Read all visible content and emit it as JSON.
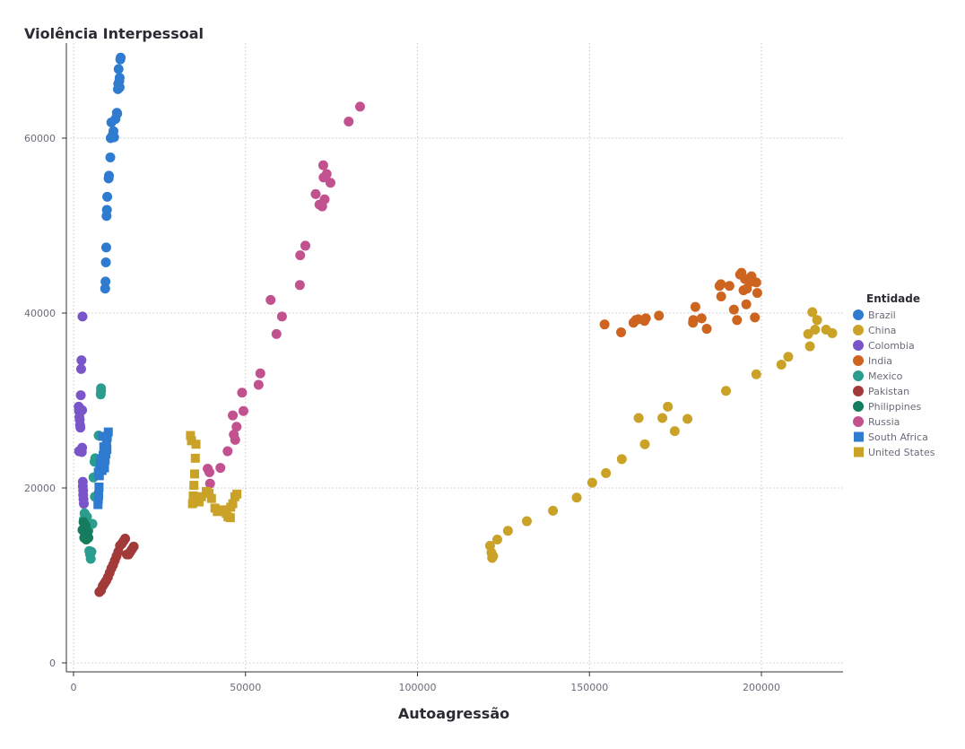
{
  "chart_data": {
    "type": "scatter",
    "title": "Violência Interpessoal",
    "xlabel": "Autoagressão",
    "ylabel": "",
    "xlim": [
      -2000,
      223000
    ],
    "ylim": [
      -1000,
      70000
    ],
    "xticks": [
      0,
      50000,
      100000,
      150000,
      200000
    ],
    "yticks": [
      0,
      20000,
      40000,
      60000
    ],
    "grid": true,
    "legend": {
      "title": "Entidade",
      "position": "right"
    },
    "series": [
      {
        "name": "Brazil",
        "color": "#2e7bcf",
        "marker": "circle",
        "points": [
          [
            9200,
            42800
          ],
          [
            9300,
            43600
          ],
          [
            9400,
            45800
          ],
          [
            9500,
            47500
          ],
          [
            9600,
            51100
          ],
          [
            9700,
            51800
          ],
          [
            9800,
            53300
          ],
          [
            10200,
            55400
          ],
          [
            10300,
            55700
          ],
          [
            10700,
            57800
          ],
          [
            10800,
            60000
          ],
          [
            11000,
            61800
          ],
          [
            11300,
            60300
          ],
          [
            11600,
            60800
          ],
          [
            11800,
            60100
          ],
          [
            12200,
            62200
          ],
          [
            12600,
            62900
          ],
          [
            12700,
            62800
          ],
          [
            12900,
            65600
          ],
          [
            13000,
            66200
          ],
          [
            13100,
            67900
          ],
          [
            13300,
            66500
          ],
          [
            13400,
            66900
          ],
          [
            13600,
            69000
          ],
          [
            13700,
            69200
          ],
          [
            13400,
            65800
          ]
        ]
      },
      {
        "name": "China",
        "color": "#c9a227",
        "marker": "circle",
        "points": [
          [
            121100,
            13400
          ],
          [
            121500,
            12600
          ],
          [
            121700,
            12000
          ],
          [
            122000,
            12200
          ],
          [
            123200,
            14100
          ],
          [
            126300,
            15100
          ],
          [
            131800,
            16200
          ],
          [
            139400,
            17400
          ],
          [
            146300,
            18900
          ],
          [
            150800,
            20600
          ],
          [
            154800,
            21700
          ],
          [
            159400,
            23300
          ],
          [
            164300,
            28000
          ],
          [
            166100,
            25000
          ],
          [
            171200,
            28000
          ],
          [
            172800,
            29300
          ],
          [
            174800,
            26500
          ],
          [
            178500,
            27900
          ],
          [
            189700,
            31100
          ],
          [
            198500,
            33000
          ],
          [
            205800,
            34100
          ],
          [
            207800,
            35000
          ],
          [
            213600,
            37600
          ],
          [
            214100,
            36200
          ],
          [
            214800,
            40100
          ],
          [
            215600,
            38100
          ],
          [
            216200,
            39200
          ],
          [
            218800,
            38100
          ],
          [
            220600,
            37700
          ]
        ]
      },
      {
        "name": "Colombia",
        "color": "#7a55c9",
        "marker": "circle",
        "points": [
          [
            1500,
            29300
          ],
          [
            1600,
            28800
          ],
          [
            1700,
            28100
          ],
          [
            1800,
            27800
          ],
          [
            1900,
            27200
          ],
          [
            2000,
            26900
          ],
          [
            2100,
            30600
          ],
          [
            2200,
            33600
          ],
          [
            2300,
            34600
          ],
          [
            2400,
            24100
          ],
          [
            2500,
            24600
          ],
          [
            2600,
            39600
          ],
          [
            2700,
            20700
          ],
          [
            2700,
            20200
          ],
          [
            2800,
            19700
          ],
          [
            2800,
            19200
          ],
          [
            2900,
            18700
          ],
          [
            3000,
            18200
          ],
          [
            2500,
            28900
          ],
          [
            1800,
            28900
          ],
          [
            1600,
            24200
          ]
        ]
      },
      {
        "name": "India",
        "color": "#cd6420",
        "marker": "circle",
        "points": [
          [
            154400,
            38700
          ],
          [
            159200,
            37800
          ],
          [
            162800,
            38900
          ],
          [
            163500,
            39200
          ],
          [
            164200,
            39300
          ],
          [
            166000,
            39100
          ],
          [
            166400,
            39400
          ],
          [
            170200,
            39700
          ],
          [
            180100,
            38900
          ],
          [
            180200,
            39200
          ],
          [
            180800,
            40700
          ],
          [
            182600,
            39400
          ],
          [
            184100,
            38200
          ],
          [
            187800,
            43100
          ],
          [
            188200,
            43300
          ],
          [
            188300,
            41900
          ],
          [
            190700,
            43100
          ],
          [
            192000,
            40400
          ],
          [
            192900,
            39200
          ],
          [
            193800,
            44400
          ],
          [
            194200,
            44600
          ],
          [
            194800,
            42600
          ],
          [
            195200,
            43900
          ],
          [
            195600,
            41000
          ],
          [
            195800,
            42800
          ],
          [
            196300,
            43800
          ],
          [
            197100,
            44200
          ],
          [
            197600,
            43600
          ],
          [
            198100,
            39500
          ],
          [
            198500,
            43500
          ],
          [
            198800,
            42300
          ]
        ]
      },
      {
        "name": "Mexico",
        "color": "#2a9d8f",
        "marker": "circle",
        "points": [
          [
            3000,
            16400
          ],
          [
            3200,
            17100
          ],
          [
            3600,
            15700
          ],
          [
            3900,
            16700
          ],
          [
            4300,
            15100
          ],
          [
            4600,
            12800
          ],
          [
            4800,
            12400
          ],
          [
            5000,
            11900
          ],
          [
            5200,
            12700
          ],
          [
            5500,
            15900
          ],
          [
            5800,
            21200
          ],
          [
            6200,
            19000
          ],
          [
            6300,
            23400
          ],
          [
            7300,
            26000
          ],
          [
            8000,
            31100
          ],
          [
            8000,
            31400
          ],
          [
            7900,
            30700
          ],
          [
            6100,
            23000
          ]
        ]
      },
      {
        "name": "Pakistan",
        "color": "#a33a3a",
        "marker": "circle",
        "points": [
          [
            7500,
            8100
          ],
          [
            8000,
            8300
          ],
          [
            8500,
            8800
          ],
          [
            9000,
            9100
          ],
          [
            9500,
            9400
          ],
          [
            10000,
            9800
          ],
          [
            10500,
            10300
          ],
          [
            11000,
            10800
          ],
          [
            11500,
            11200
          ],
          [
            12000,
            11700
          ],
          [
            12500,
            12200
          ],
          [
            13000,
            12700
          ],
          [
            13500,
            13400
          ],
          [
            14000,
            13600
          ],
          [
            14500,
            13900
          ],
          [
            15000,
            14200
          ],
          [
            15500,
            12400
          ],
          [
            16000,
            12400
          ],
          [
            16500,
            12700
          ],
          [
            17000,
            13000
          ],
          [
            17500,
            13300
          ]
        ]
      },
      {
        "name": "Philippines",
        "color": "#157d5e",
        "marker": "circle",
        "points": [
          [
            2600,
            15200
          ],
          [
            2900,
            16100
          ],
          [
            3100,
            14300
          ],
          [
            3300,
            14900
          ],
          [
            3500,
            15700
          ],
          [
            3700,
            14100
          ],
          [
            3900,
            14700
          ],
          [
            4100,
            15000
          ],
          [
            4300,
            14300
          ]
        ]
      },
      {
        "name": "Russia",
        "color": "#c2528f",
        "marker": "circle",
        "points": [
          [
            39000,
            22200
          ],
          [
            39500,
            21800
          ],
          [
            39700,
            20500
          ],
          [
            42700,
            22300
          ],
          [
            44800,
            24200
          ],
          [
            46300,
            28300
          ],
          [
            46600,
            26100
          ],
          [
            47000,
            25500
          ],
          [
            47400,
            27000
          ],
          [
            49000,
            30900
          ],
          [
            49400,
            28800
          ],
          [
            53800,
            31800
          ],
          [
            54300,
            33100
          ],
          [
            57300,
            41500
          ],
          [
            59000,
            37600
          ],
          [
            60600,
            39600
          ],
          [
            65800,
            43200
          ],
          [
            65900,
            46600
          ],
          [
            67400,
            47700
          ],
          [
            70400,
            53600
          ],
          [
            71500,
            52400
          ],
          [
            72300,
            52200
          ],
          [
            72600,
            56900
          ],
          [
            72700,
            55500
          ],
          [
            73000,
            53000
          ],
          [
            73600,
            55900
          ],
          [
            74700,
            54900
          ],
          [
            80000,
            61900
          ],
          [
            83300,
            63600
          ]
        ]
      },
      {
        "name": "South Africa",
        "color": "#2e7bcf",
        "marker": "square",
        "points": [
          [
            7100,
            18100
          ],
          [
            7200,
            18700
          ],
          [
            7300,
            19200
          ],
          [
            7400,
            20100
          ],
          [
            7500,
            21400
          ],
          [
            7600,
            22100
          ],
          [
            7700,
            22400
          ],
          [
            7800,
            23000
          ],
          [
            7900,
            22900
          ],
          [
            8000,
            23300
          ],
          [
            8100,
            22600
          ],
          [
            8300,
            22000
          ],
          [
            8600,
            23700
          ],
          [
            8800,
            24700
          ],
          [
            9000,
            22300
          ],
          [
            9200,
            23200
          ],
          [
            9400,
            23900
          ],
          [
            9600,
            25300
          ],
          [
            9800,
            25800
          ],
          [
            10100,
            26400
          ],
          [
            8500,
            25900
          ],
          [
            9700,
            24400
          ],
          [
            7200,
            21800
          ]
        ]
      },
      {
        "name": "United States",
        "color": "#c9a227",
        "marker": "square",
        "points": [
          [
            34000,
            26000
          ],
          [
            34300,
            25400
          ],
          [
            34600,
            18200
          ],
          [
            34800,
            19100
          ],
          [
            35000,
            20300
          ],
          [
            35200,
            21600
          ],
          [
            35400,
            23400
          ],
          [
            35600,
            25000
          ],
          [
            36500,
            18400
          ],
          [
            37200,
            19000
          ],
          [
            38600,
            19600
          ],
          [
            39400,
            19400
          ],
          [
            40100,
            18800
          ],
          [
            41100,
            17700
          ],
          [
            41800,
            17300
          ],
          [
            43400,
            17500
          ],
          [
            44400,
            17100
          ],
          [
            44900,
            16700
          ],
          [
            45700,
            17800
          ],
          [
            46300,
            18200
          ],
          [
            46900,
            19000
          ],
          [
            47500,
            19300
          ],
          [
            45600,
            16600
          ]
        ]
      }
    ]
  }
}
